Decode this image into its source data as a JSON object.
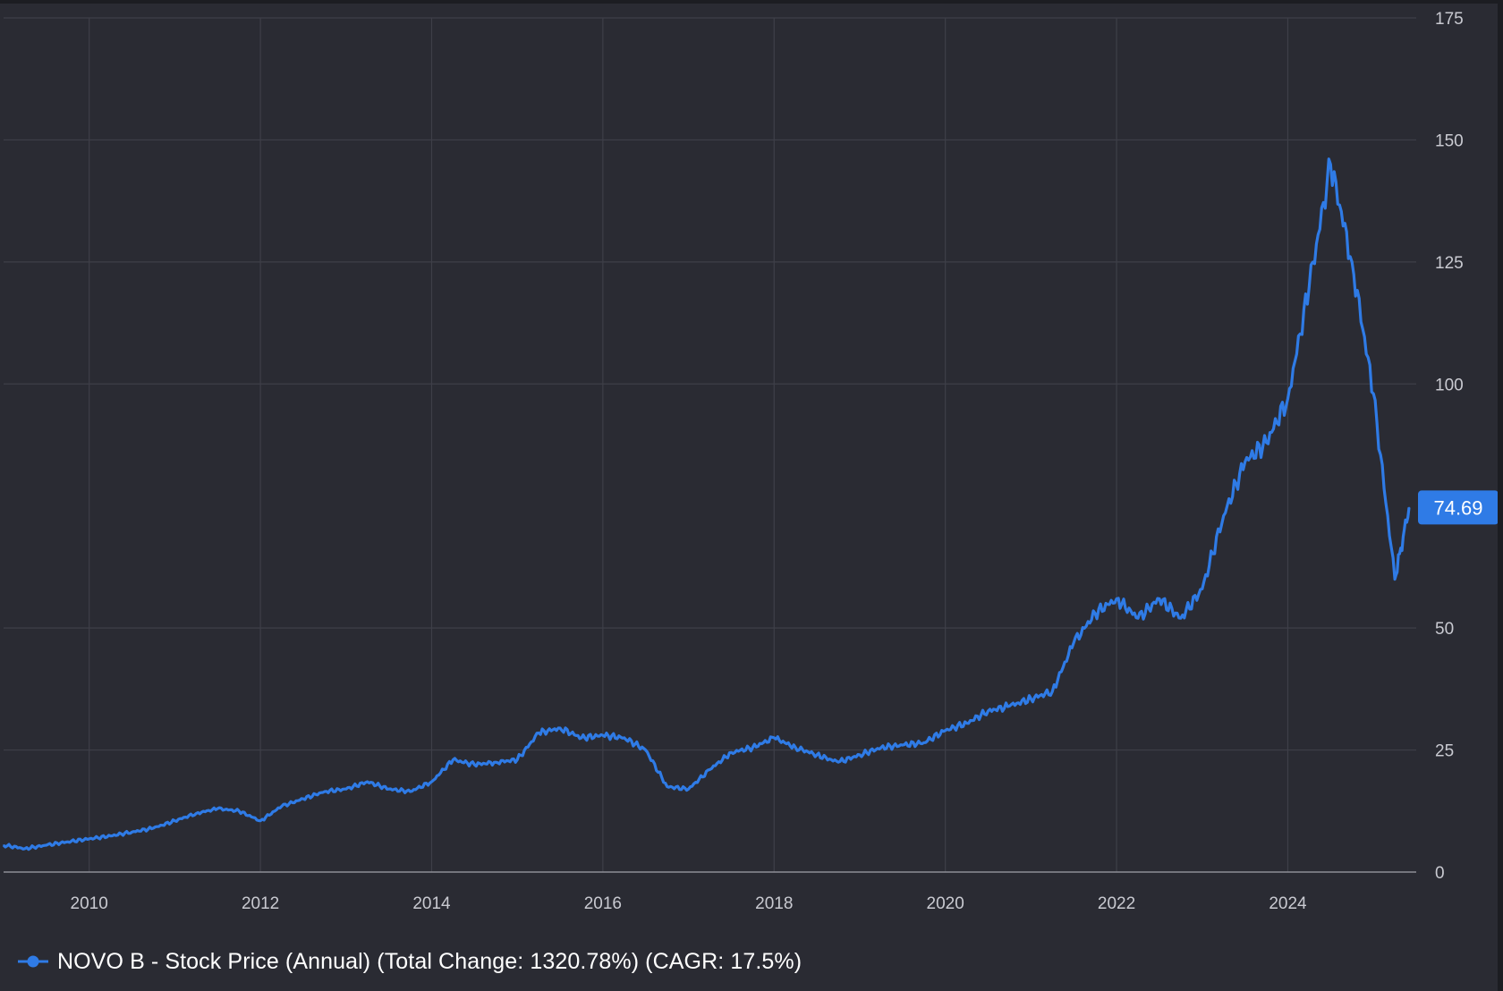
{
  "chart_data": {
    "type": "line",
    "title": "",
    "xlabel": "",
    "ylabel": "",
    "x_ticks": [
      "2010",
      "2012",
      "2014",
      "2016",
      "2018",
      "2020",
      "2022",
      "2024"
    ],
    "y_ticks": [
      "0",
      "25",
      "50",
      "100",
      "125",
      "150",
      "175"
    ],
    "xlim": [
      "2009-01",
      "2025-07"
    ],
    "ylim": [
      0,
      175
    ],
    "grid": true,
    "legend_position": "bottom-left",
    "last_value_label": "74.69",
    "series": [
      {
        "name": "NOVO B - Stock Price (Annual) (Total Change: 1320.78%) (CAGR: 17.5%)",
        "color": "#2f7be6",
        "x": [
          "2009-01",
          "2009-04",
          "2009-07",
          "2009-10",
          "2010-01",
          "2010-04",
          "2010-07",
          "2010-10",
          "2011-01",
          "2011-04",
          "2011-07",
          "2011-10",
          "2012-01",
          "2012-04",
          "2012-07",
          "2012-10",
          "2013-01",
          "2013-04",
          "2013-07",
          "2013-10",
          "2014-01",
          "2014-04",
          "2014-07",
          "2014-10",
          "2015-01",
          "2015-04",
          "2015-07",
          "2015-10",
          "2016-01",
          "2016-04",
          "2016-07",
          "2016-10",
          "2017-01",
          "2017-04",
          "2017-07",
          "2017-10",
          "2018-01",
          "2018-04",
          "2018-07",
          "2018-10",
          "2019-01",
          "2019-04",
          "2019-07",
          "2019-10",
          "2020-01",
          "2020-04",
          "2020-07",
          "2020-10",
          "2021-01",
          "2021-04",
          "2021-07",
          "2021-10",
          "2022-01",
          "2022-04",
          "2022-07",
          "2022-10",
          "2023-01",
          "2023-04",
          "2023-07",
          "2023-10",
          "2024-01",
          "2024-04",
          "2024-07",
          "2024-10",
          "2025-01",
          "2025-04",
          "2025-06"
        ],
        "values": [
          5.5,
          4.8,
          5.5,
          6.2,
          6.8,
          7.4,
          8.2,
          9.0,
          10.5,
          12.0,
          13.0,
          12.5,
          10.5,
          13.5,
          15.0,
          16.5,
          17.0,
          18.5,
          17.0,
          16.5,
          18.5,
          23.0,
          22.0,
          22.5,
          23.0,
          28.5,
          29.5,
          27.5,
          28.0,
          27.5,
          25.0,
          17.5,
          17.0,
          21.0,
          24.5,
          25.5,
          27.5,
          25.5,
          24.0,
          22.5,
          24.0,
          25.5,
          26.0,
          26.5,
          29.0,
          30.5,
          33.0,
          34.0,
          35.5,
          37.0,
          47.0,
          53.0,
          56.0,
          52.0,
          56.0,
          52.0,
          58.0,
          73.0,
          84.0,
          88.0,
          97.0,
          120.0,
          145.0,
          125.0,
          98.0,
          60.0,
          74.69
        ]
      }
    ]
  },
  "legend": {
    "label": "NOVO B - Stock Price (Annual) (Total Change: 1320.78%) (CAGR: 17.5%)"
  }
}
